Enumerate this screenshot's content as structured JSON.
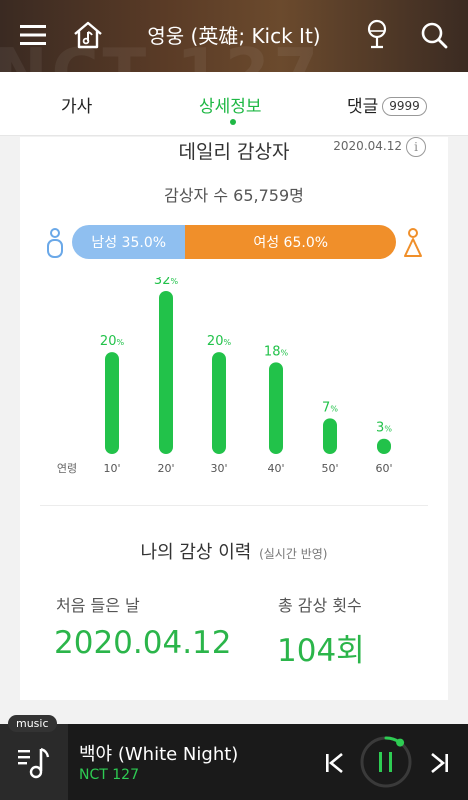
{
  "header": {
    "title": "영웅 (英雄; Kick It)",
    "menu_icon": "hamburger-menu-icon",
    "home_icon": "home-music-icon",
    "mic_icon": "microphone-icon",
    "search_icon": "search-icon"
  },
  "tabs": [
    {
      "label": "가사",
      "active": false
    },
    {
      "label": "상세정보",
      "active": true
    },
    {
      "label": "댓글",
      "active": false,
      "badge": "9999"
    }
  ],
  "daily": {
    "title": "데일리 감상자",
    "date": "2020.04.12",
    "info_label": "i",
    "listeners": "감상자 수 65,759명",
    "male_label": "남성 35.0%",
    "female_label": "여성 65.0%",
    "male_share": 35.0,
    "female_share": 65.0
  },
  "chart_data": {
    "type": "bar",
    "xlabel": "연령",
    "categories": [
      "10'",
      "20'",
      "30'",
      "40'",
      "50'",
      "60'"
    ],
    "values": [
      20,
      32,
      20,
      18,
      7,
      3
    ],
    "unit": "%",
    "color": "#22c24a"
  },
  "history": {
    "title": "나의 감상 이력",
    "subtitle": "(실시간 반영)",
    "first_label": "처음 들은 날",
    "first_value": "2020.04.12",
    "count_label": "총 감상 횟수",
    "count_value": "104회"
  },
  "player": {
    "tag": "music",
    "song": "백야 (White Night)",
    "artist": "NCT 127",
    "progress": 0.1,
    "accent": "#2ecc53"
  }
}
